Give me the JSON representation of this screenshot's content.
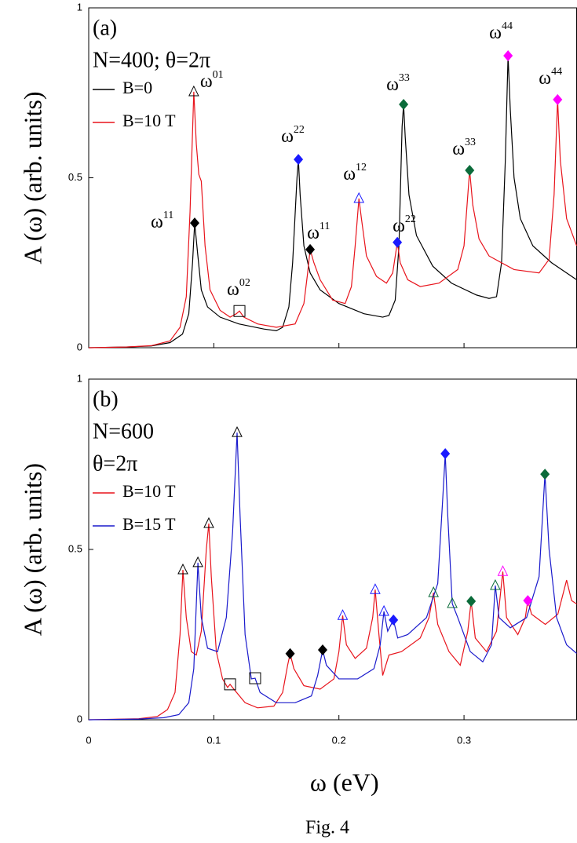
{
  "chart_data": [
    {
      "type": "line",
      "panel_label": "(a)",
      "annotations": [
        "N=400; θ=2π"
      ],
      "ylabel": "A (ω) (arb. units)",
      "xlim": [
        0,
        0.39
      ],
      "ylim": [
        0,
        1
      ],
      "xticks": [
        0,
        0.1,
        0.2,
        0.3
      ],
      "yticks": [
        0,
        0.5,
        1
      ],
      "show_xticklabels": false,
      "series": [
        {
          "name": "B=0",
          "color": "#000000",
          "x": [
            0,
            0.03,
            0.05,
            0.065,
            0.075,
            0.08,
            0.083,
            0.0847,
            0.087,
            0.09,
            0.095,
            0.105,
            0.12,
            0.14,
            0.15,
            0.155,
            0.16,
            0.163,
            0.1665,
            0.1676,
            0.169,
            0.172,
            0.177,
            0.185,
            0.2,
            0.22,
            0.235,
            0.24,
            0.245,
            0.248,
            0.2505,
            0.2517,
            0.253,
            0.256,
            0.262,
            0.275,
            0.29,
            0.31,
            0.32,
            0.326,
            0.33,
            0.333,
            0.3352,
            0.337,
            0.34,
            0.345,
            0.355,
            0.37,
            0.39
          ],
          "values": [
            0,
            0.002,
            0.005,
            0.015,
            0.04,
            0.1,
            0.25,
            0.367,
            0.28,
            0.17,
            0.12,
            0.09,
            0.07,
            0.055,
            0.05,
            0.06,
            0.12,
            0.25,
            0.5,
            0.554,
            0.45,
            0.3,
            0.22,
            0.17,
            0.13,
            0.1,
            0.09,
            0.095,
            0.14,
            0.3,
            0.65,
            0.716,
            0.62,
            0.45,
            0.33,
            0.24,
            0.19,
            0.155,
            0.145,
            0.15,
            0.25,
            0.55,
            0.859,
            0.7,
            0.5,
            0.38,
            0.3,
            0.25,
            0.2
          ]
        },
        {
          "name": "B=10 T",
          "color": "#e8141c",
          "x": [
            0,
            0.03,
            0.05,
            0.065,
            0.073,
            0.078,
            0.081,
            0.084,
            0.086,
            0.088,
            0.09,
            0.093,
            0.097,
            0.105,
            0.113,
            0.118,
            0.1205,
            0.124,
            0.135,
            0.15,
            0.165,
            0.172,
            0.175,
            0.177,
            0.18,
            0.185,
            0.195,
            0.205,
            0.21,
            0.213,
            0.216,
            0.218,
            0.222,
            0.23,
            0.238,
            0.243,
            0.2467,
            0.249,
            0.255,
            0.265,
            0.28,
            0.295,
            0.3,
            0.3045,
            0.307,
            0.312,
            0.32,
            0.34,
            0.36,
            0.368,
            0.372,
            0.3748,
            0.377,
            0.382,
            0.39
          ],
          "values": [
            0,
            0.002,
            0.006,
            0.02,
            0.06,
            0.15,
            0.4,
            0.753,
            0.6,
            0.51,
            0.49,
            0.3,
            0.17,
            0.11,
            0.09,
            0.1,
            0.108,
            0.09,
            0.07,
            0.06,
            0.07,
            0.13,
            0.22,
            0.289,
            0.25,
            0.2,
            0.14,
            0.13,
            0.18,
            0.3,
            0.439,
            0.38,
            0.27,
            0.21,
            0.19,
            0.22,
            0.31,
            0.25,
            0.2,
            0.18,
            0.19,
            0.23,
            0.3,
            0.522,
            0.42,
            0.32,
            0.27,
            0.23,
            0.22,
            0.26,
            0.45,
            0.73,
            0.55,
            0.38,
            0.3
          ]
        }
      ],
      "markers": [
        {
          "x": 0.0847,
          "y": 0.367,
          "shape": "diamond",
          "color": "#000000",
          "label": "ω",
          "label_sup": "11",
          "label_color": "#000000"
        },
        {
          "x": 0.084,
          "y": 0.753,
          "shape": "triangle",
          "color": "#000000",
          "label": "ω",
          "label_sup": "01",
          "label_color": "#e8141c"
        },
        {
          "x": 0.1205,
          "y": 0.108,
          "shape": "square",
          "color": "#000000",
          "label": "ω",
          "label_sup": "02",
          "label_color": "#e8141c"
        },
        {
          "x": 0.1676,
          "y": 0.554,
          "shape": "diamond",
          "color": "#1a1aff",
          "label": "ω",
          "label_sup": "22",
          "label_color": "#000000"
        },
        {
          "x": 0.177,
          "y": 0.289,
          "shape": "diamond",
          "color": "#000000",
          "label": "ω",
          "label_sup": "11",
          "label_color": "#e8141c"
        },
        {
          "x": 0.216,
          "y": 0.439,
          "shape": "triangle",
          "color": "#1a1aff",
          "label": "ω",
          "label_sup": "12",
          "label_color": "#e8141c"
        },
        {
          "x": 0.2467,
          "y": 0.31,
          "shape": "diamond",
          "color": "#1a1aff",
          "label": "ω",
          "label_sup": "22",
          "label_color": "#e8141c"
        },
        {
          "x": 0.2517,
          "y": 0.716,
          "shape": "diamond",
          "color": "#0b6b3a",
          "label": "ω",
          "label_sup": "33",
          "label_color": "#000000"
        },
        {
          "x": 0.3045,
          "y": 0.522,
          "shape": "diamond",
          "color": "#0b6b3a",
          "label": "ω",
          "label_sup": "33",
          "label_color": "#e8141c"
        },
        {
          "x": 0.3352,
          "y": 0.859,
          "shape": "diamond",
          "color": "#ff00ff",
          "label": "ω",
          "label_sup": "44",
          "label_color": "#000000"
        },
        {
          "x": 0.3748,
          "y": 0.73,
          "shape": "diamond",
          "color": "#ff00ff",
          "label": "ω",
          "label_sup": "44",
          "label_color": "#e8141c"
        }
      ]
    },
    {
      "type": "line",
      "panel_label": "(b)",
      "annotations": [
        "N=600",
        "θ=2π"
      ],
      "ylabel": "A (ω) (arb. units)",
      "xlabel": "ω (eV)",
      "xlim": [
        0,
        0.39
      ],
      "ylim": [
        0,
        1
      ],
      "xticks": [
        0,
        0.1,
        0.2,
        0.3
      ],
      "yticks": [
        0,
        0.5,
        1
      ],
      "show_xticklabels": true,
      "series": [
        {
          "name": "B=10 T",
          "color": "#e8141c",
          "x": [
            0,
            0.04,
            0.055,
            0.063,
            0.069,
            0.073,
            0.0753,
            0.078,
            0.082,
            0.086,
            0.09,
            0.094,
            0.096,
            0.098,
            0.102,
            0.107,
            0.111,
            0.113,
            0.116,
            0.125,
            0.135,
            0.148,
            0.155,
            0.159,
            0.161,
            0.164,
            0.172,
            0.185,
            0.196,
            0.2,
            0.203,
            0.206,
            0.213,
            0.222,
            0.227,
            0.229,
            0.232,
            0.235,
            0.24,
            0.25,
            0.265,
            0.272,
            0.2756,
            0.279,
            0.288,
            0.297,
            0.303,
            0.3057,
            0.309,
            0.318,
            0.326,
            0.331,
            0.334,
            0.343,
            0.349,
            0.351,
            0.354,
            0.365,
            0.375,
            0.382,
            0.386,
            0.39
          ],
          "values": [
            0,
            0.003,
            0.01,
            0.03,
            0.08,
            0.25,
            0.44,
            0.3,
            0.2,
            0.19,
            0.26,
            0.5,
            0.576,
            0.42,
            0.2,
            0.12,
            0.095,
            0.104,
            0.09,
            0.05,
            0.035,
            0.04,
            0.08,
            0.16,
            0.194,
            0.15,
            0.1,
            0.09,
            0.12,
            0.2,
            0.306,
            0.22,
            0.18,
            0.21,
            0.3,
            0.382,
            0.25,
            0.13,
            0.19,
            0.2,
            0.24,
            0.3,
            0.373,
            0.28,
            0.2,
            0.16,
            0.26,
            0.348,
            0.24,
            0.2,
            0.26,
            0.435,
            0.3,
            0.25,
            0.3,
            0.35,
            0.31,
            0.28,
            0.31,
            0.41,
            0.35,
            0.34
          ]
        },
        {
          "name": "B=15 T",
          "color": "#1a1acc",
          "x": [
            0,
            0.04,
            0.06,
            0.072,
            0.08,
            0.084,
            0.0873,
            0.09,
            0.095,
            0.103,
            0.11,
            0.115,
            0.1186,
            0.121,
            0.125,
            0.13,
            0.133,
            0.137,
            0.15,
            0.165,
            0.178,
            0.183,
            0.187,
            0.19,
            0.2,
            0.215,
            0.228,
            0.233,
            0.236,
            0.239,
            0.2436,
            0.247,
            0.255,
            0.27,
            0.279,
            0.283,
            0.285,
            0.287,
            0.2906,
            0.295,
            0.305,
            0.315,
            0.322,
            0.325,
            0.328,
            0.337,
            0.35,
            0.36,
            0.3647,
            0.368,
            0.374,
            0.382,
            0.39
          ],
          "values": [
            0,
            0.002,
            0.006,
            0.015,
            0.05,
            0.15,
            0.461,
            0.3,
            0.21,
            0.2,
            0.3,
            0.55,
            0.843,
            0.6,
            0.25,
            0.12,
            0.122,
            0.08,
            0.05,
            0.05,
            0.07,
            0.13,
            0.205,
            0.16,
            0.12,
            0.12,
            0.15,
            0.22,
            0.318,
            0.26,
            0.293,
            0.24,
            0.25,
            0.3,
            0.4,
            0.65,
            0.781,
            0.6,
            0.341,
            0.3,
            0.2,
            0.17,
            0.22,
            0.394,
            0.3,
            0.27,
            0.3,
            0.42,
            0.721,
            0.5,
            0.3,
            0.22,
            0.195
          ]
        }
      ],
      "markers": [
        {
          "x": 0.0753,
          "y": 0.44,
          "shape": "triangle",
          "color": "#000000"
        },
        {
          "x": 0.0873,
          "y": 0.461,
          "shape": "triangle",
          "color": "#000000"
        },
        {
          "x": 0.096,
          "y": 0.576,
          "shape": "triangle",
          "color": "#000000"
        },
        {
          "x": 0.1186,
          "y": 0.843,
          "shape": "triangle",
          "color": "#000000"
        },
        {
          "x": 0.113,
          "y": 0.104,
          "shape": "square",
          "color": "#000000"
        },
        {
          "x": 0.133,
          "y": 0.122,
          "shape": "square",
          "color": "#000000"
        },
        {
          "x": 0.161,
          "y": 0.194,
          "shape": "diamond",
          "color": "#000000"
        },
        {
          "x": 0.187,
          "y": 0.205,
          "shape": "diamond",
          "color": "#000000"
        },
        {
          "x": 0.203,
          "y": 0.306,
          "shape": "triangle",
          "color": "#1a1aff"
        },
        {
          "x": 0.229,
          "y": 0.382,
          "shape": "triangle",
          "color": "#1a1aff"
        },
        {
          "x": 0.236,
          "y": 0.318,
          "shape": "triangle",
          "color": "#1a1aff"
        },
        {
          "x": 0.2436,
          "y": 0.293,
          "shape": "diamond",
          "color": "#1a1aff"
        },
        {
          "x": 0.285,
          "y": 0.781,
          "shape": "diamond",
          "color": "#1a1aff"
        },
        {
          "x": 0.2756,
          "y": 0.373,
          "shape": "triangle",
          "color": "#0b6b3a"
        },
        {
          "x": 0.2906,
          "y": 0.341,
          "shape": "triangle",
          "color": "#0b6b3a"
        },
        {
          "x": 0.325,
          "y": 0.394,
          "shape": "triangle",
          "color": "#0b6b3a"
        },
        {
          "x": 0.3057,
          "y": 0.348,
          "shape": "diamond",
          "color": "#0b6b3a"
        },
        {
          "x": 0.3647,
          "y": 0.721,
          "shape": "diamond",
          "color": "#0b6b3a"
        },
        {
          "x": 0.331,
          "y": 0.435,
          "shape": "triangle",
          "color": "#ff00ff"
        },
        {
          "x": 0.351,
          "y": 0.35,
          "shape": "diamond",
          "color": "#ff00ff"
        }
      ]
    }
  ],
  "caption": "Fig. 4"
}
